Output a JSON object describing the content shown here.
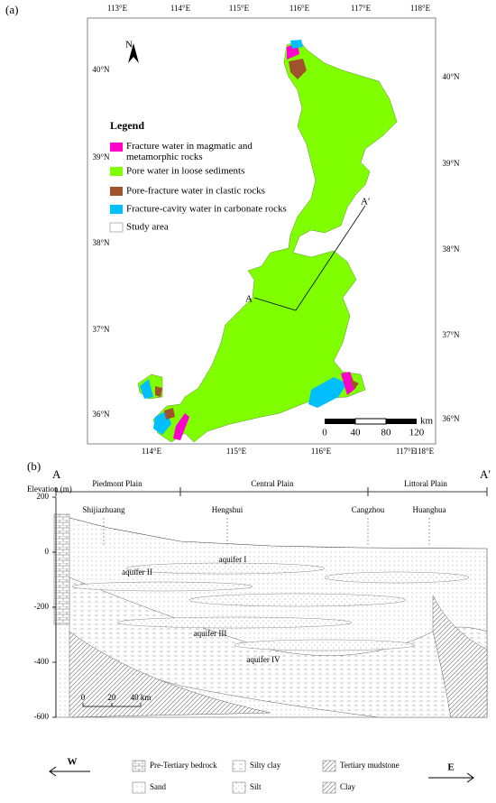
{
  "panel_a": {
    "label": "(a)",
    "lon_ticks_top": [
      "113°E",
      "114°E",
      "115°E",
      "116°E",
      "117°E",
      "118°E"
    ],
    "lon_ticks_bottom": [
      "114°E",
      "115°E",
      "116°E",
      "117°E",
      "118°E"
    ],
    "lat_ticks_left": [
      "40°N",
      "39°N",
      "38°N",
      "37°N",
      "36°N"
    ],
    "lat_ticks_right": [
      "40°N",
      "39°N",
      "38°N",
      "37°N",
      "36°N"
    ],
    "north": "N",
    "legend": {
      "title": "Legend",
      "items": [
        {
          "label": "Fracture water in magmatic and metamorphic rocks",
          "color": "#ff00cc"
        },
        {
          "label": "Pore water in loose sediments",
          "color": "#80ff00"
        },
        {
          "label": "Pore-fracture water in clastic rocks",
          "color": "#a0522d"
        },
        {
          "label": "Fracture-cavity water in carbonate rocks",
          "color": "#00bfff"
        },
        {
          "label": "Study area",
          "color": "#ffffff"
        }
      ]
    },
    "scale_bar": {
      "ticks": [
        "0",
        "40",
        "80",
        "120"
      ],
      "unit": "km"
    },
    "section": {
      "start": "A",
      "end": "A′"
    }
  },
  "panel_b": {
    "label": "(b)",
    "start": "A",
    "end": "A′",
    "y_axis_label": "Elevation (m)",
    "yticks": [
      200,
      0,
      -200,
      -400,
      -600
    ],
    "regions": [
      "Piedmont Plain",
      "Central Plain",
      "Littoral Plain"
    ],
    "cities": [
      "Shijiazhuang",
      "Hengshui",
      "Cangzhou",
      "Huanghua"
    ],
    "aquifers": [
      "aquifer I",
      "aquifer II",
      "aquifer III",
      "aquifer IV"
    ],
    "scale_bar": {
      "ticks": [
        "0",
        "20",
        "40 km"
      ]
    },
    "legend": [
      "Pre-Tertiary bedrock",
      "Silty clay",
      "Tertiary mudstone",
      "Sand",
      "Silt",
      "Clay"
    ],
    "west": "W",
    "east": "E"
  }
}
